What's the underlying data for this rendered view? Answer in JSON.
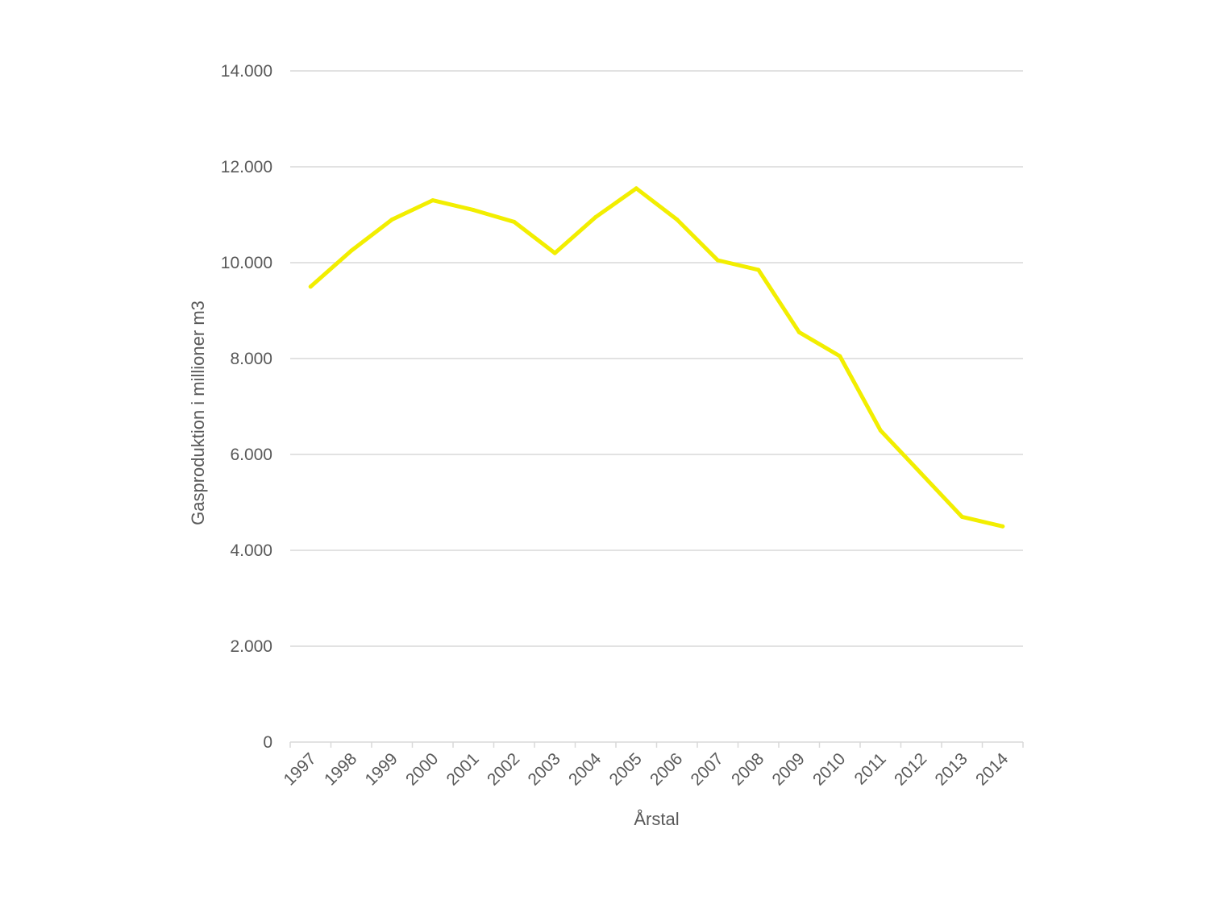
{
  "chart_data": {
    "type": "line",
    "title": "",
    "xlabel": "Årstal",
    "ylabel": "Gasproduktion i millioner m3",
    "ylim": [
      0,
      14000
    ],
    "yticks": [
      0,
      2000,
      4000,
      6000,
      8000,
      10000,
      12000,
      14000
    ],
    "ytick_labels": [
      "0",
      "2.000",
      "4.000",
      "6.000",
      "8.000",
      "10.000",
      "12.000",
      "14.000"
    ],
    "categories": [
      "1997",
      "1998",
      "1999",
      "2000",
      "2001",
      "2002",
      "2003",
      "2004",
      "2005",
      "2006",
      "2007",
      "2008",
      "2009",
      "2010",
      "2011",
      "2012",
      "2013",
      "2014"
    ],
    "series": [
      {
        "color": "#f2ee00",
        "values": [
          9500,
          10250,
          10900,
          11300,
          11100,
          10850,
          10200,
          10950,
          11550,
          10900,
          10050,
          9850,
          8550,
          8050,
          6500,
          5600,
          4700,
          4500
        ]
      }
    ],
    "grid": true,
    "legend": "none"
  }
}
